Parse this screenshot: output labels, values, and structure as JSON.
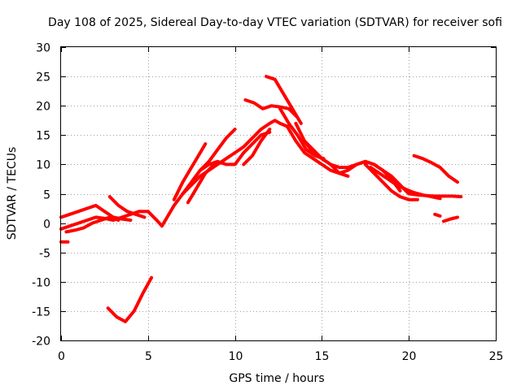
{
  "chart_data": {
    "type": "line",
    "title": "Day 108 of 2025, Sidereal Day-to-day VTEC variation (SDTVAR) for receiver sofi",
    "xlabel": "GPS time / hours",
    "ylabel": "SDTVAR / TECUs",
    "xlim": [
      0,
      25
    ],
    "ylim": [
      -20,
      30
    ],
    "xticks": [
      0,
      5,
      10,
      15,
      20,
      25
    ],
    "yticks": [
      -20,
      -15,
      -10,
      -5,
      0,
      5,
      10,
      15,
      20,
      25,
      30
    ],
    "xtick_labels": [
      "0",
      "5",
      "10",
      "15",
      "20",
      "25"
    ],
    "ytick_labels": [
      "-20",
      "-15",
      "-10",
      "-5",
      "0",
      "5",
      "10",
      "15",
      "20",
      "25",
      "30"
    ],
    "grid": true,
    "legend": "none",
    "series_color": "#ff0000",
    "series": [
      {
        "name": "main",
        "x": [
          0,
          0.5,
          1,
          1.5,
          2,
          2.5,
          3,
          3.5,
          4,
          4.5,
          5,
          5.5,
          5.8,
          6,
          6.5,
          7,
          7.5,
          8,
          8.5,
          9,
          9.5,
          10,
          10.5,
          11,
          11.5,
          12,
          12.3,
          12.6,
          13,
          13.5,
          14,
          14.5,
          15,
          15.5,
          16,
          16.5,
          17,
          17.5,
          18,
          18.5,
          19,
          19.5,
          20,
          20.5,
          21,
          21.5,
          22,
          22.5,
          23
        ],
        "y": [
          -1,
          -0.5,
          0,
          0.5,
          1,
          0.8,
          0.5,
          1,
          1.5,
          2,
          2,
          0.5,
          -0.5,
          0.5,
          3,
          5,
          6.5,
          8,
          9,
          10,
          11,
          12,
          13,
          14.5,
          16,
          17,
          17.5,
          17,
          16.5,
          14,
          12,
          11,
          10,
          9,
          8.5,
          9,
          10,
          10.5,
          10,
          9,
          8,
          6.5,
          5,
          4.8,
          4.7,
          4.6,
          4.6,
          4.6,
          4.5
        ]
      },
      {
        "name": "s2",
        "x": [
          0,
          0.5,
          1,
          1.5,
          2,
          2.5,
          3,
          3.5,
          4
        ],
        "y": [
          1,
          1.5,
          2,
          2.5,
          3,
          2,
          1,
          0.7,
          0.5
        ]
      },
      {
        "name": "s3",
        "x": [
          0.3,
          0.8,
          1.3,
          1.8,
          2.3,
          2.8,
          3.3
        ],
        "y": [
          -1.5,
          -1.2,
          -0.8,
          0,
          0.5,
          1,
          0.5
        ]
      },
      {
        "name": "s4",
        "x": [
          2.8,
          3.3,
          3.8,
          4.3,
          4.8
        ],
        "y": [
          4.5,
          3,
          2,
          1.5,
          1
        ]
      },
      {
        "name": "s5",
        "x": [
          0,
          0.4
        ],
        "y": [
          -3.2,
          -3.2
        ]
      },
      {
        "name": "s6",
        "x": [
          2.7,
          3.2,
          3.7,
          4.2,
          4.7,
          5.2
        ],
        "y": [
          -14.5,
          -16,
          -16.8,
          -15,
          -12,
          -9.3
        ]
      },
      {
        "name": "s7",
        "x": [
          7,
          7.5,
          8,
          8.5,
          9,
          9.5,
          10
        ],
        "y": [
          5,
          7,
          9,
          10.5,
          12.5,
          14.5,
          16
        ]
      },
      {
        "name": "s8",
        "x": [
          6.5,
          7,
          7.5,
          8,
          8.3
        ],
        "y": [
          4,
          7,
          9.5,
          12,
          13.5
        ]
      },
      {
        "name": "s9",
        "x": [
          7.3,
          7.8,
          8.3,
          8.8,
          9.3
        ],
        "y": [
          3.5,
          6,
          8.5,
          10,
          10.5
        ]
      },
      {
        "name": "s10",
        "x": [
          8,
          8.5,
          9,
          9.5,
          10,
          10.5,
          11,
          11.5,
          12
        ],
        "y": [
          9,
          10,
          10.5,
          10,
          10,
          12,
          13.5,
          15,
          15.5
        ]
      },
      {
        "name": "s11",
        "x": [
          10.5,
          11,
          11.5,
          12
        ],
        "y": [
          10,
          11.5,
          14,
          16
        ]
      },
      {
        "name": "s12",
        "x": [
          10.6,
          11.1,
          11.6,
          12.1,
          12.6,
          13.1,
          13.6
        ],
        "y": [
          21,
          20.5,
          19.5,
          20,
          19.8,
          19.5,
          18
        ]
      },
      {
        "name": "s13",
        "x": [
          11.8,
          12.3,
          12.8,
          13.3,
          13.8
        ],
        "y": [
          25,
          24.5,
          22,
          19.5,
          17
        ]
      },
      {
        "name": "s14",
        "x": [
          12.6,
          13.1,
          13.6,
          14.1,
          14.6,
          15.1
        ],
        "y": [
          19.5,
          17,
          15,
          12.5,
          11.5,
          11
        ]
      },
      {
        "name": "s15",
        "x": [
          13.5,
          14,
          14.5,
          15,
          15.5,
          16,
          16.5,
          17,
          17.5,
          18,
          18.5,
          19,
          19.5
        ],
        "y": [
          17,
          14,
          12,
          11,
          10,
          9.5,
          9.5,
          10,
          10.5,
          10,
          9,
          7.5,
          5.5
        ]
      },
      {
        "name": "s16",
        "x": [
          14,
          14.5,
          15,
          15.5,
          16,
          16.5
        ],
        "y": [
          14,
          12.5,
          11,
          10,
          8.5,
          8
        ]
      },
      {
        "name": "s17",
        "x": [
          17.5,
          18,
          18.5,
          19,
          19.5,
          20,
          20.5
        ],
        "y": [
          10,
          8.5,
          7,
          5.5,
          4.5,
          4,
          4
        ]
      },
      {
        "name": "s18",
        "x": [
          17.8,
          18.3,
          18.8,
          19.3,
          19.8,
          20.3,
          20.8,
          21.3,
          21.8
        ],
        "y": [
          9.5,
          8.5,
          7.5,
          6.5,
          5.8,
          5.2,
          4.8,
          4.5,
          4.2
        ]
      },
      {
        "name": "s19",
        "x": [
          20.3,
          20.8,
          21.3,
          21.8,
          22.3,
          22.8
        ],
        "y": [
          11.5,
          11,
          10.3,
          9.5,
          8,
          7
        ]
      },
      {
        "name": "s20",
        "x": [
          21.5,
          21.8
        ],
        "y": [
          1.5,
          1.2
        ]
      },
      {
        "name": "s21",
        "x": [
          22,
          22.4,
          22.8
        ],
        "y": [
          0.3,
          0.7,
          1
        ]
      }
    ]
  }
}
